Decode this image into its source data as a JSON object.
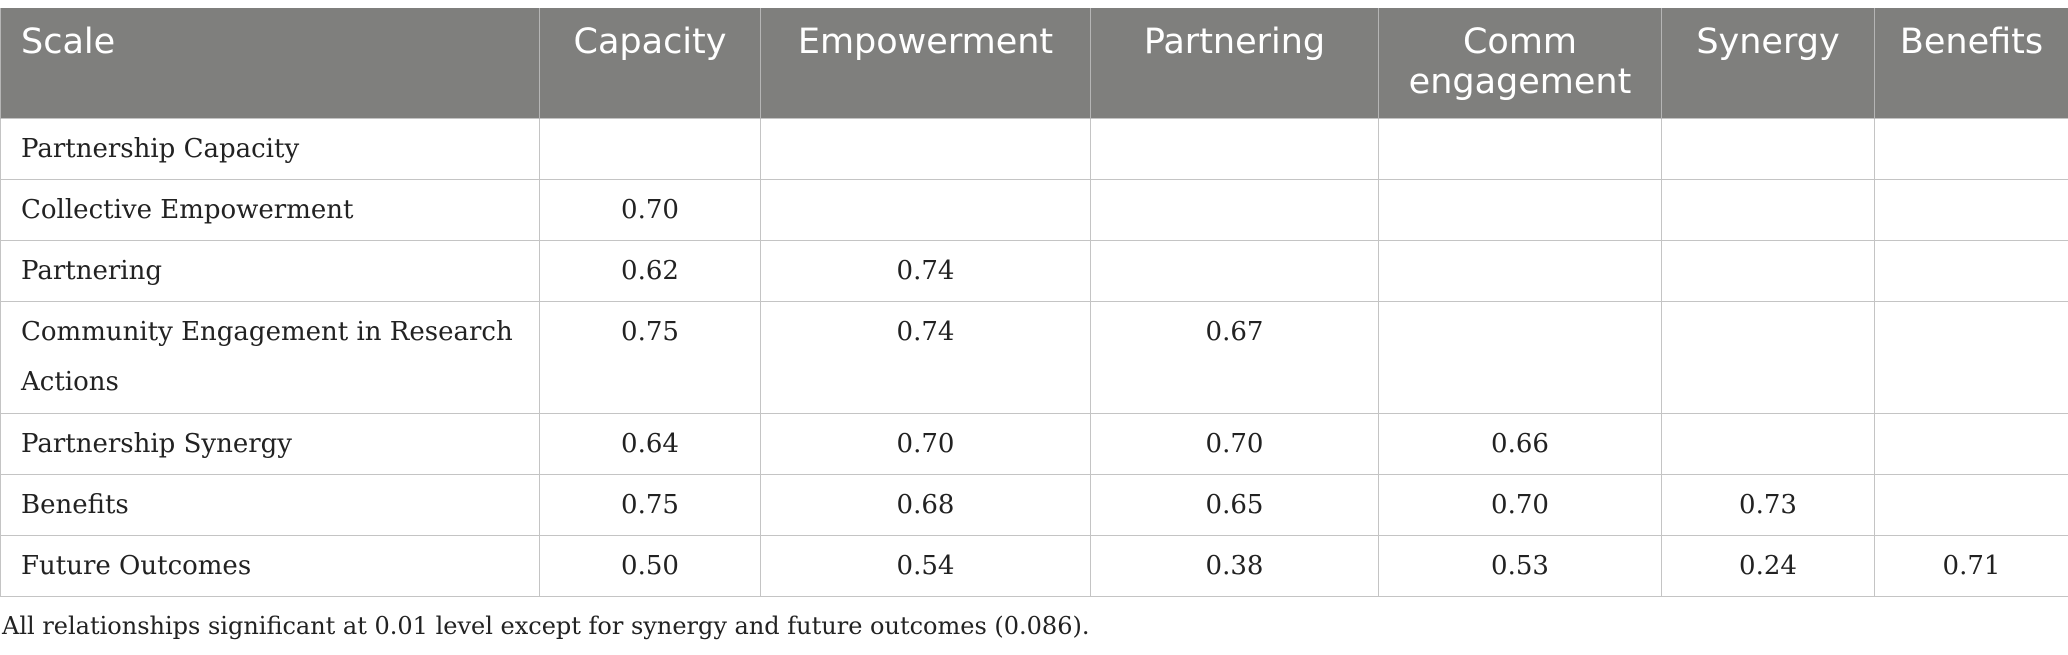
{
  "table": {
    "headers": [
      "Scale",
      "Capacity",
      "Empowerment",
      "Partnering",
      "Comm engagement",
      "Synergy",
      "Benefits"
    ],
    "rows": [
      {
        "label": "Partnership Capacity",
        "cells": [
          "",
          "",
          "",
          "",
          "",
          ""
        ]
      },
      {
        "label": "Collective Empowerment",
        "cells": [
          "0.70",
          "",
          "",
          "",
          "",
          ""
        ]
      },
      {
        "label": "Partnering",
        "cells": [
          "0.62",
          "0.74",
          "",
          "",
          "",
          ""
        ]
      },
      {
        "label": "Community Engagement in Research Actions",
        "cells": [
          "0.75",
          "0.74",
          "0.67",
          "",
          "",
          ""
        ]
      },
      {
        "label": "Partnership Synergy",
        "cells": [
          "0.64",
          "0.70",
          "0.70",
          "0.66",
          "",
          ""
        ]
      },
      {
        "label": "Benefits",
        "cells": [
          "0.75",
          "0.68",
          "0.65",
          "0.70",
          "0.73",
          ""
        ]
      },
      {
        "label": "Future Outcomes",
        "cells": [
          "0.50",
          "0.54",
          "0.38",
          "0.53",
          "0.24",
          "0.71"
        ]
      }
    ]
  },
  "footnote": "All relationships significant at 0.01 level except for synergy and future outcomes (0.086).",
  "colors": {
    "header_background": "#7f7f7d",
    "header_text": "#ffffff",
    "grid_line": "#c4c4c4"
  }
}
